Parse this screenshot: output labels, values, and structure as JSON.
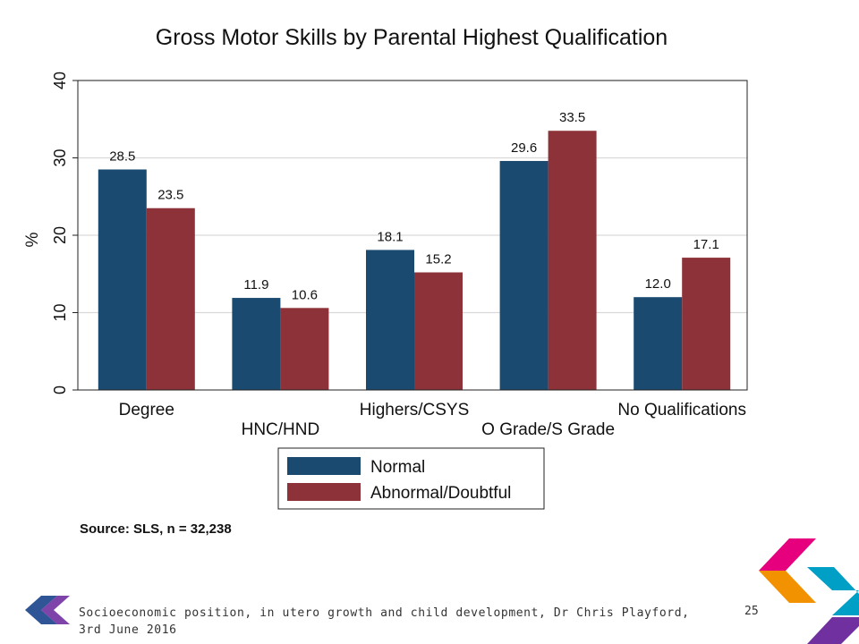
{
  "chart_data": {
    "type": "bar",
    "title": "Gross Motor Skills by Parental Highest Qualification",
    "ylabel": "%",
    "xlabel": "",
    "ylim": [
      0,
      40
    ],
    "yticks": [
      "0",
      "10",
      "20",
      "30",
      "40"
    ],
    "grid": true,
    "categories": [
      "Degree",
      "HNC/HND",
      "Highers/CSYS",
      "O Grade/S Grade",
      "No Qualifications"
    ],
    "series": [
      {
        "name": "Normal",
        "color": "#1a4a6f",
        "values": [
          28.5,
          11.9,
          18.1,
          29.6,
          12.0
        ],
        "labels": [
          "28.5",
          "11.9",
          "18.1",
          "29.6",
          "12.0"
        ]
      },
      {
        "name": "Abnormal/Doubtful",
        "color": "#8c3238",
        "values": [
          23.5,
          10.6,
          15.2,
          33.5,
          17.1
        ],
        "labels": [
          "23.5",
          "10.6",
          "15.2",
          "33.5",
          "17.1"
        ]
      }
    ],
    "legend_position": "bottom",
    "note": "Source: SLS, n = 32,238"
  },
  "footer": {
    "text": "Socioeconomic position, in utero growth and child development, Dr Chris Playford, 3rd June 2016",
    "page_number": "25"
  },
  "colors": {
    "logo_left": [
      "#2f5597",
      "#7030a0"
    ],
    "logo_right": [
      "#e6007e",
      "#f39200",
      "#00a0c6",
      "#7030a0"
    ]
  }
}
